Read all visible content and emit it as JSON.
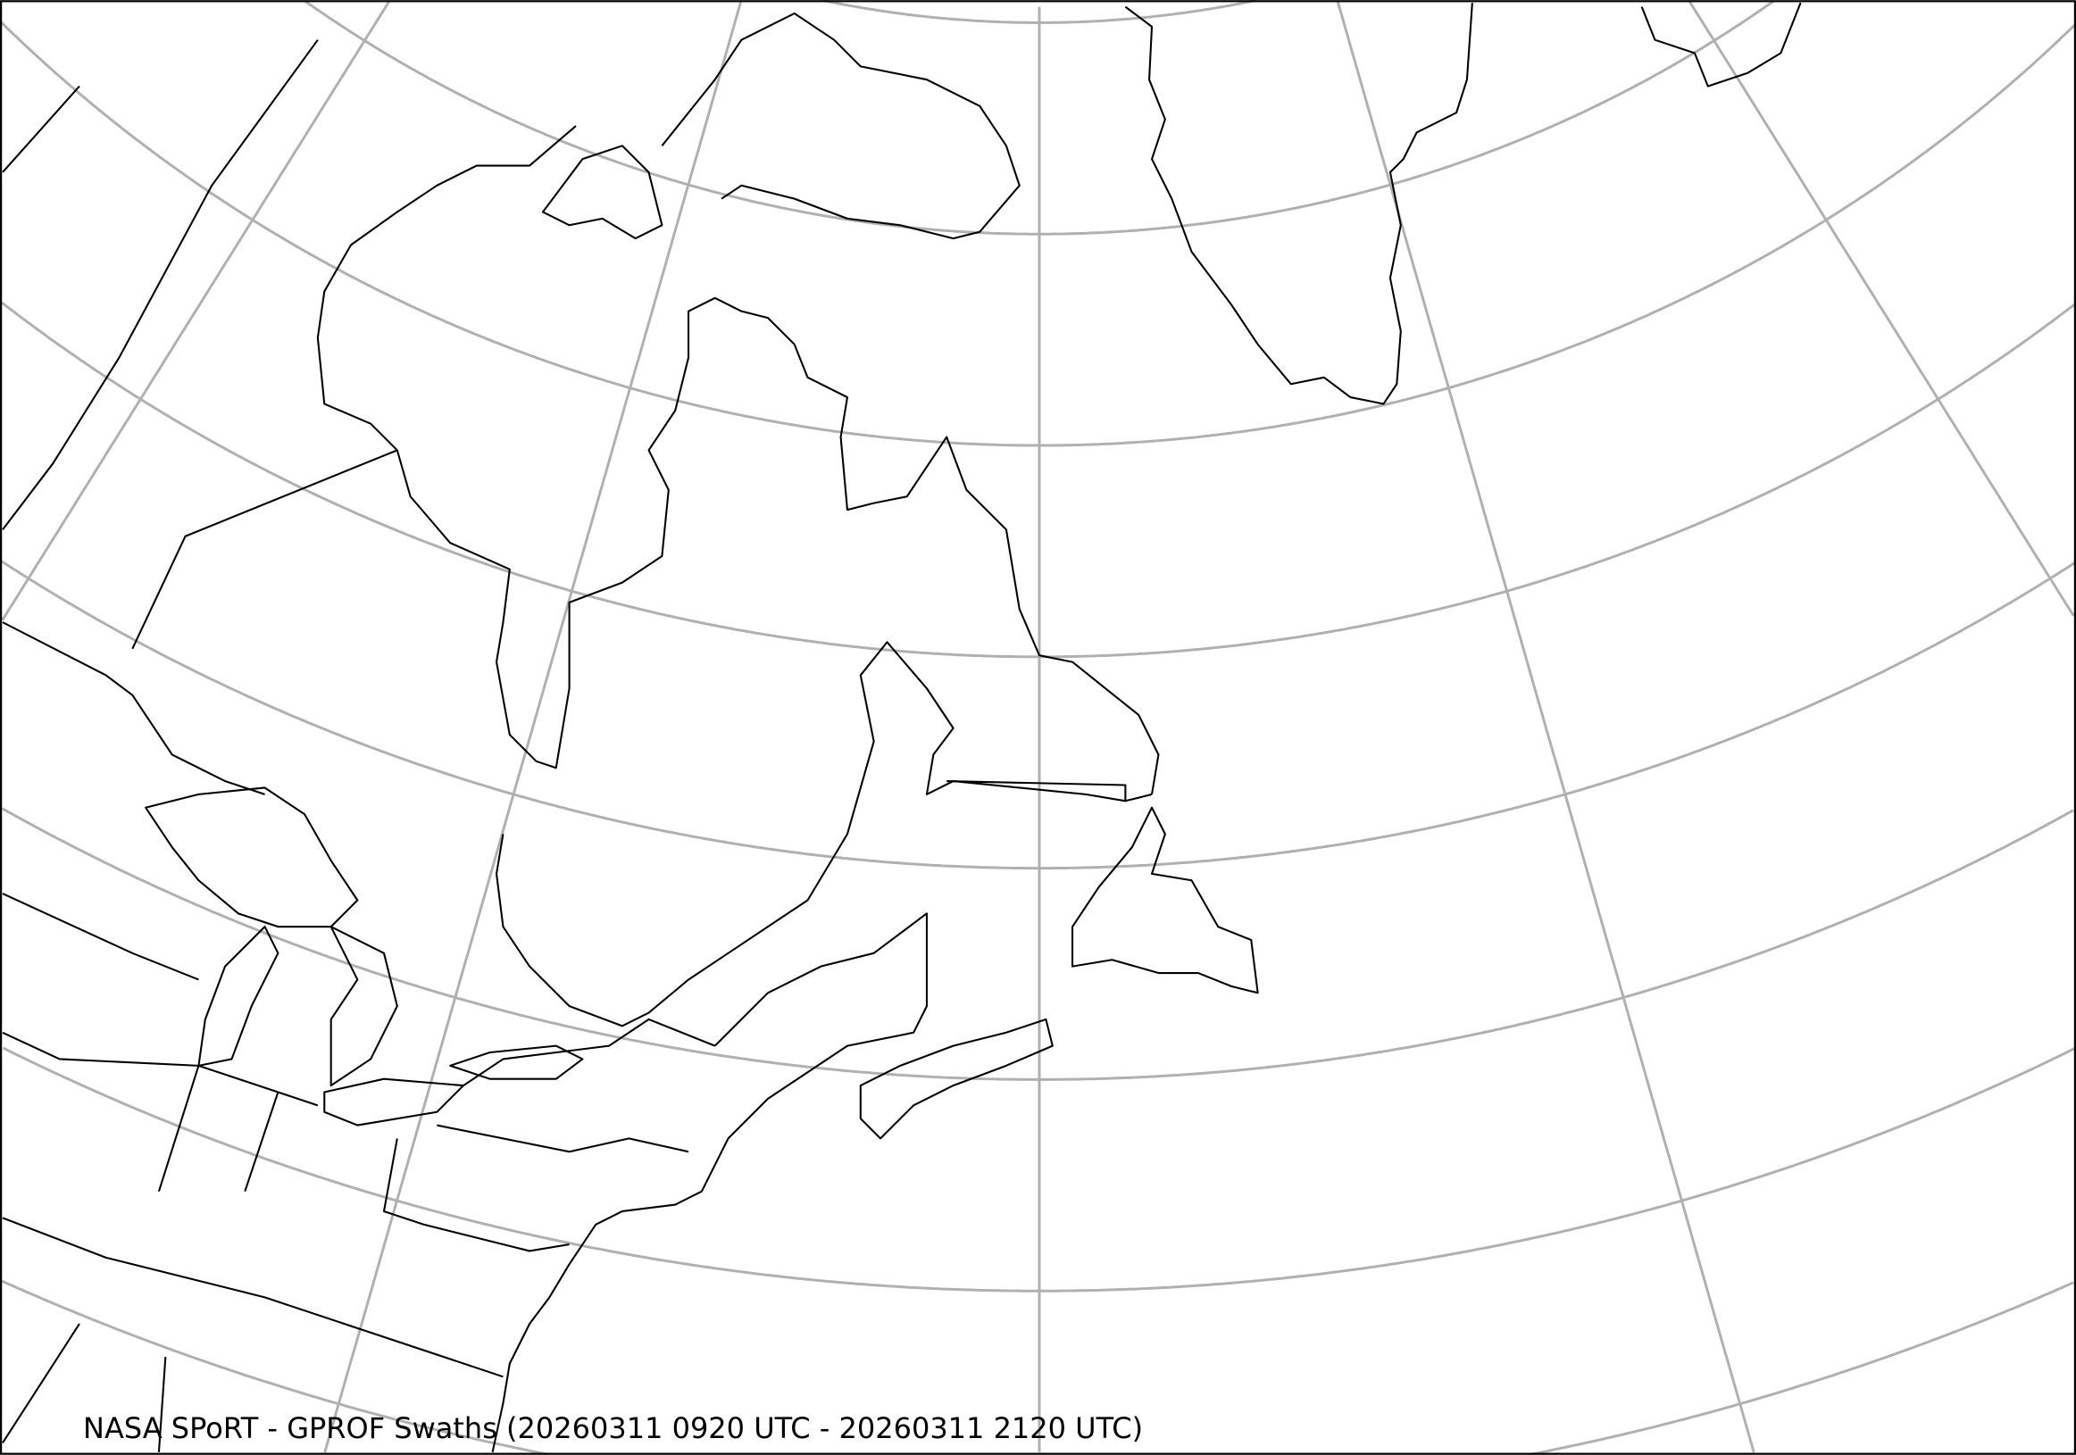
{
  "map": {
    "title": "NASA SPoRT - GPROF Swaths (20260311 0920 UTC - 20260311 2120 UTC)",
    "projection": "conic",
    "region": "Northeastern North America, Greenland, North Atlantic",
    "graticule_color": "#b0b0b0",
    "coastline_color": "#000000",
    "background_color": "#ffffff"
  }
}
